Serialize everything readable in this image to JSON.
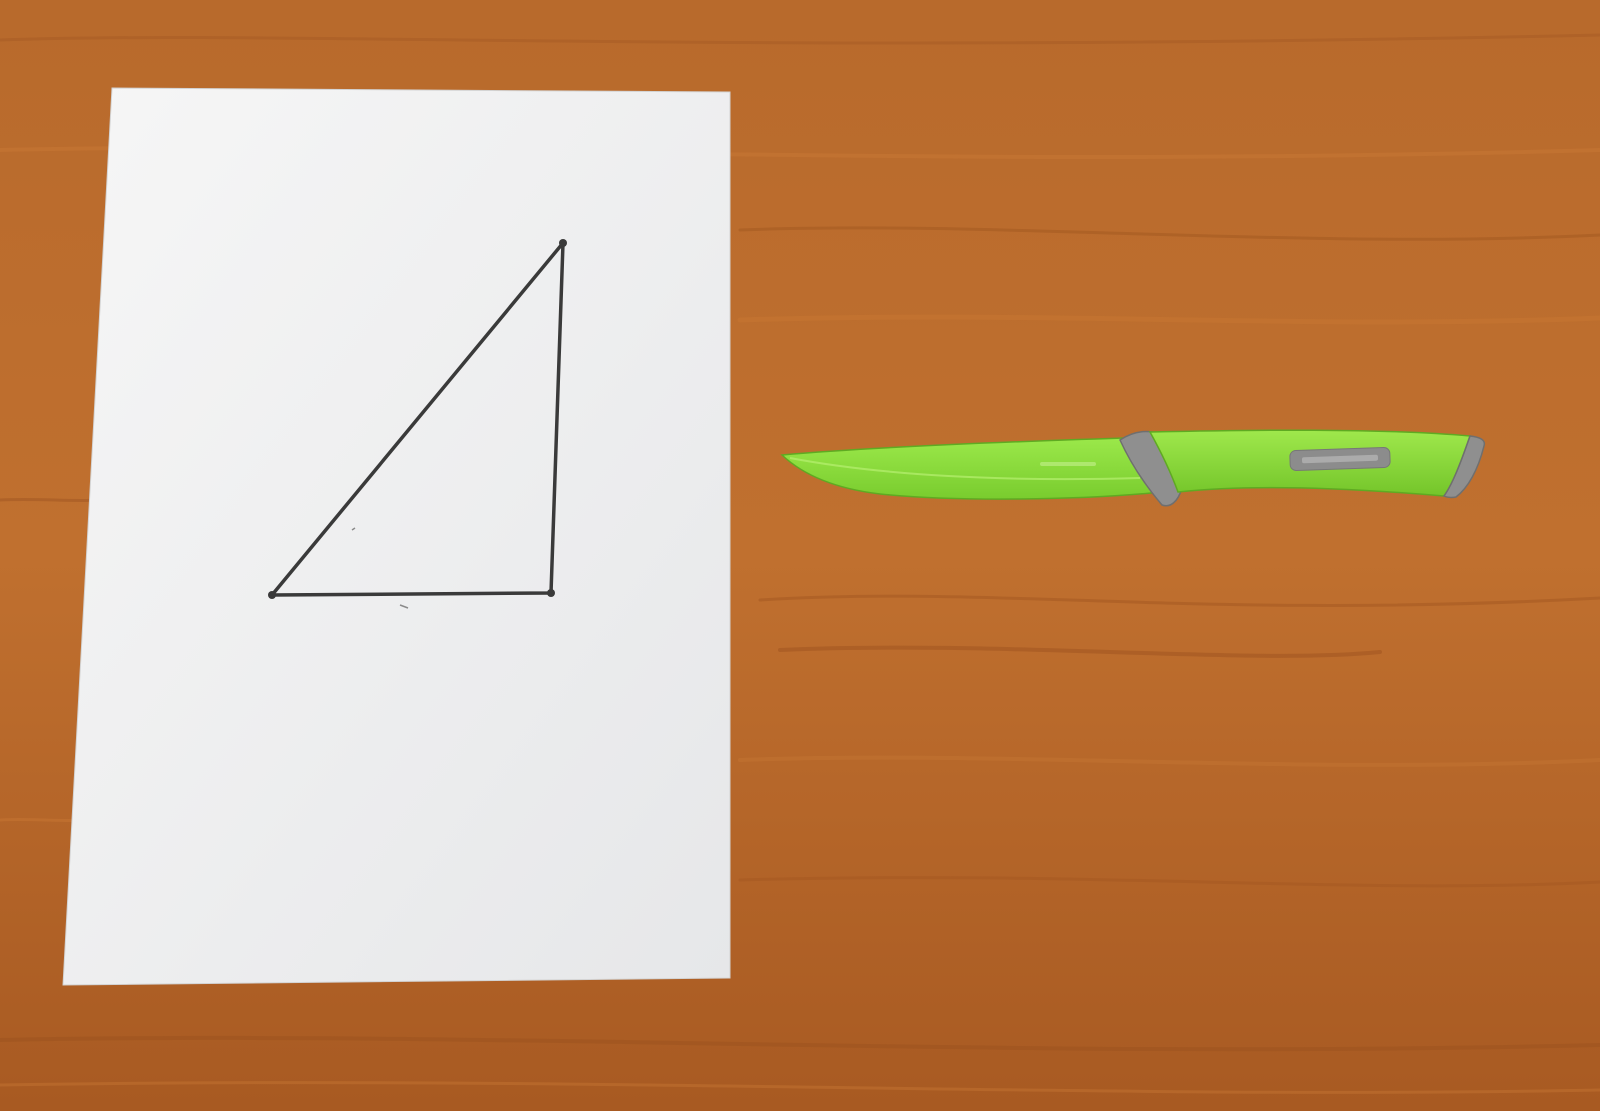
{
  "scene": {
    "colors": {
      "table": "#b8662a",
      "table_light": "#c7772f",
      "table_dark": "#9a4f1c",
      "paper": "#f4f4f4",
      "paper_shadow": "#d9d9d9",
      "ink": "#3a3a3a",
      "knife_green": "#8fe03a",
      "knife_green_dark": "#6fc22a",
      "knife_gray": "#8e8e8e",
      "knife_gray_light": "#b0b0b0"
    },
    "objects": {
      "sheet": "paper-sheet",
      "drawing": "right-triangle-drawing",
      "knife": "paring-knife"
    }
  }
}
